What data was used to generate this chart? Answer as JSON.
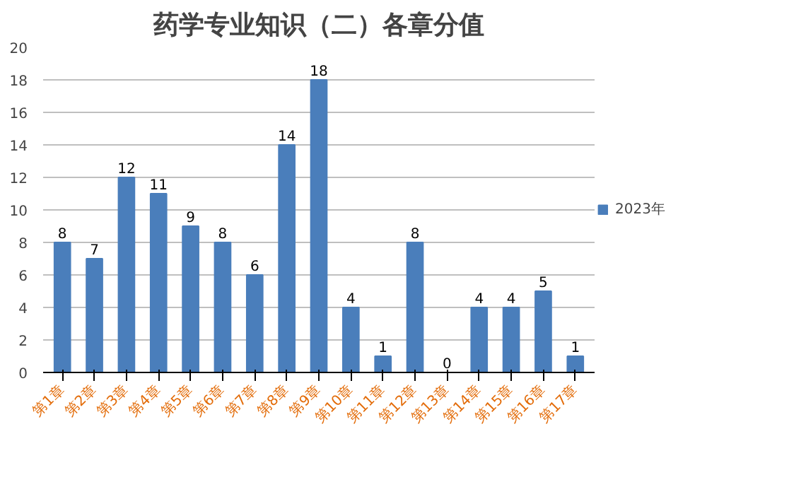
{
  "chart_data": {
    "type": "bar",
    "title": "药学专业知识（二）各章分值",
    "categories": [
      "第1章",
      "第2章",
      "第3章",
      "第4章",
      "第5章",
      "第6章",
      "第7章",
      "第8章",
      "第9章",
      "第10章",
      "第11章",
      "第12章",
      "第13章",
      "第14章",
      "第15章",
      "第16章",
      "第17章"
    ],
    "series": [
      {
        "name": "2023年",
        "color": "#4a7ebb",
        "values": [
          8,
          7,
          12,
          11,
          9,
          8,
          6,
          14,
          18,
          4,
          1,
          8,
          0,
          4,
          4,
          5,
          1
        ]
      }
    ],
    "ylim": [
      0,
      20
    ],
    "yticks": [
      0,
      2,
      4,
      6,
      8,
      10,
      12,
      14,
      16,
      18,
      20
    ],
    "grid": "y",
    "legend": "right",
    "data_labels": true
  }
}
